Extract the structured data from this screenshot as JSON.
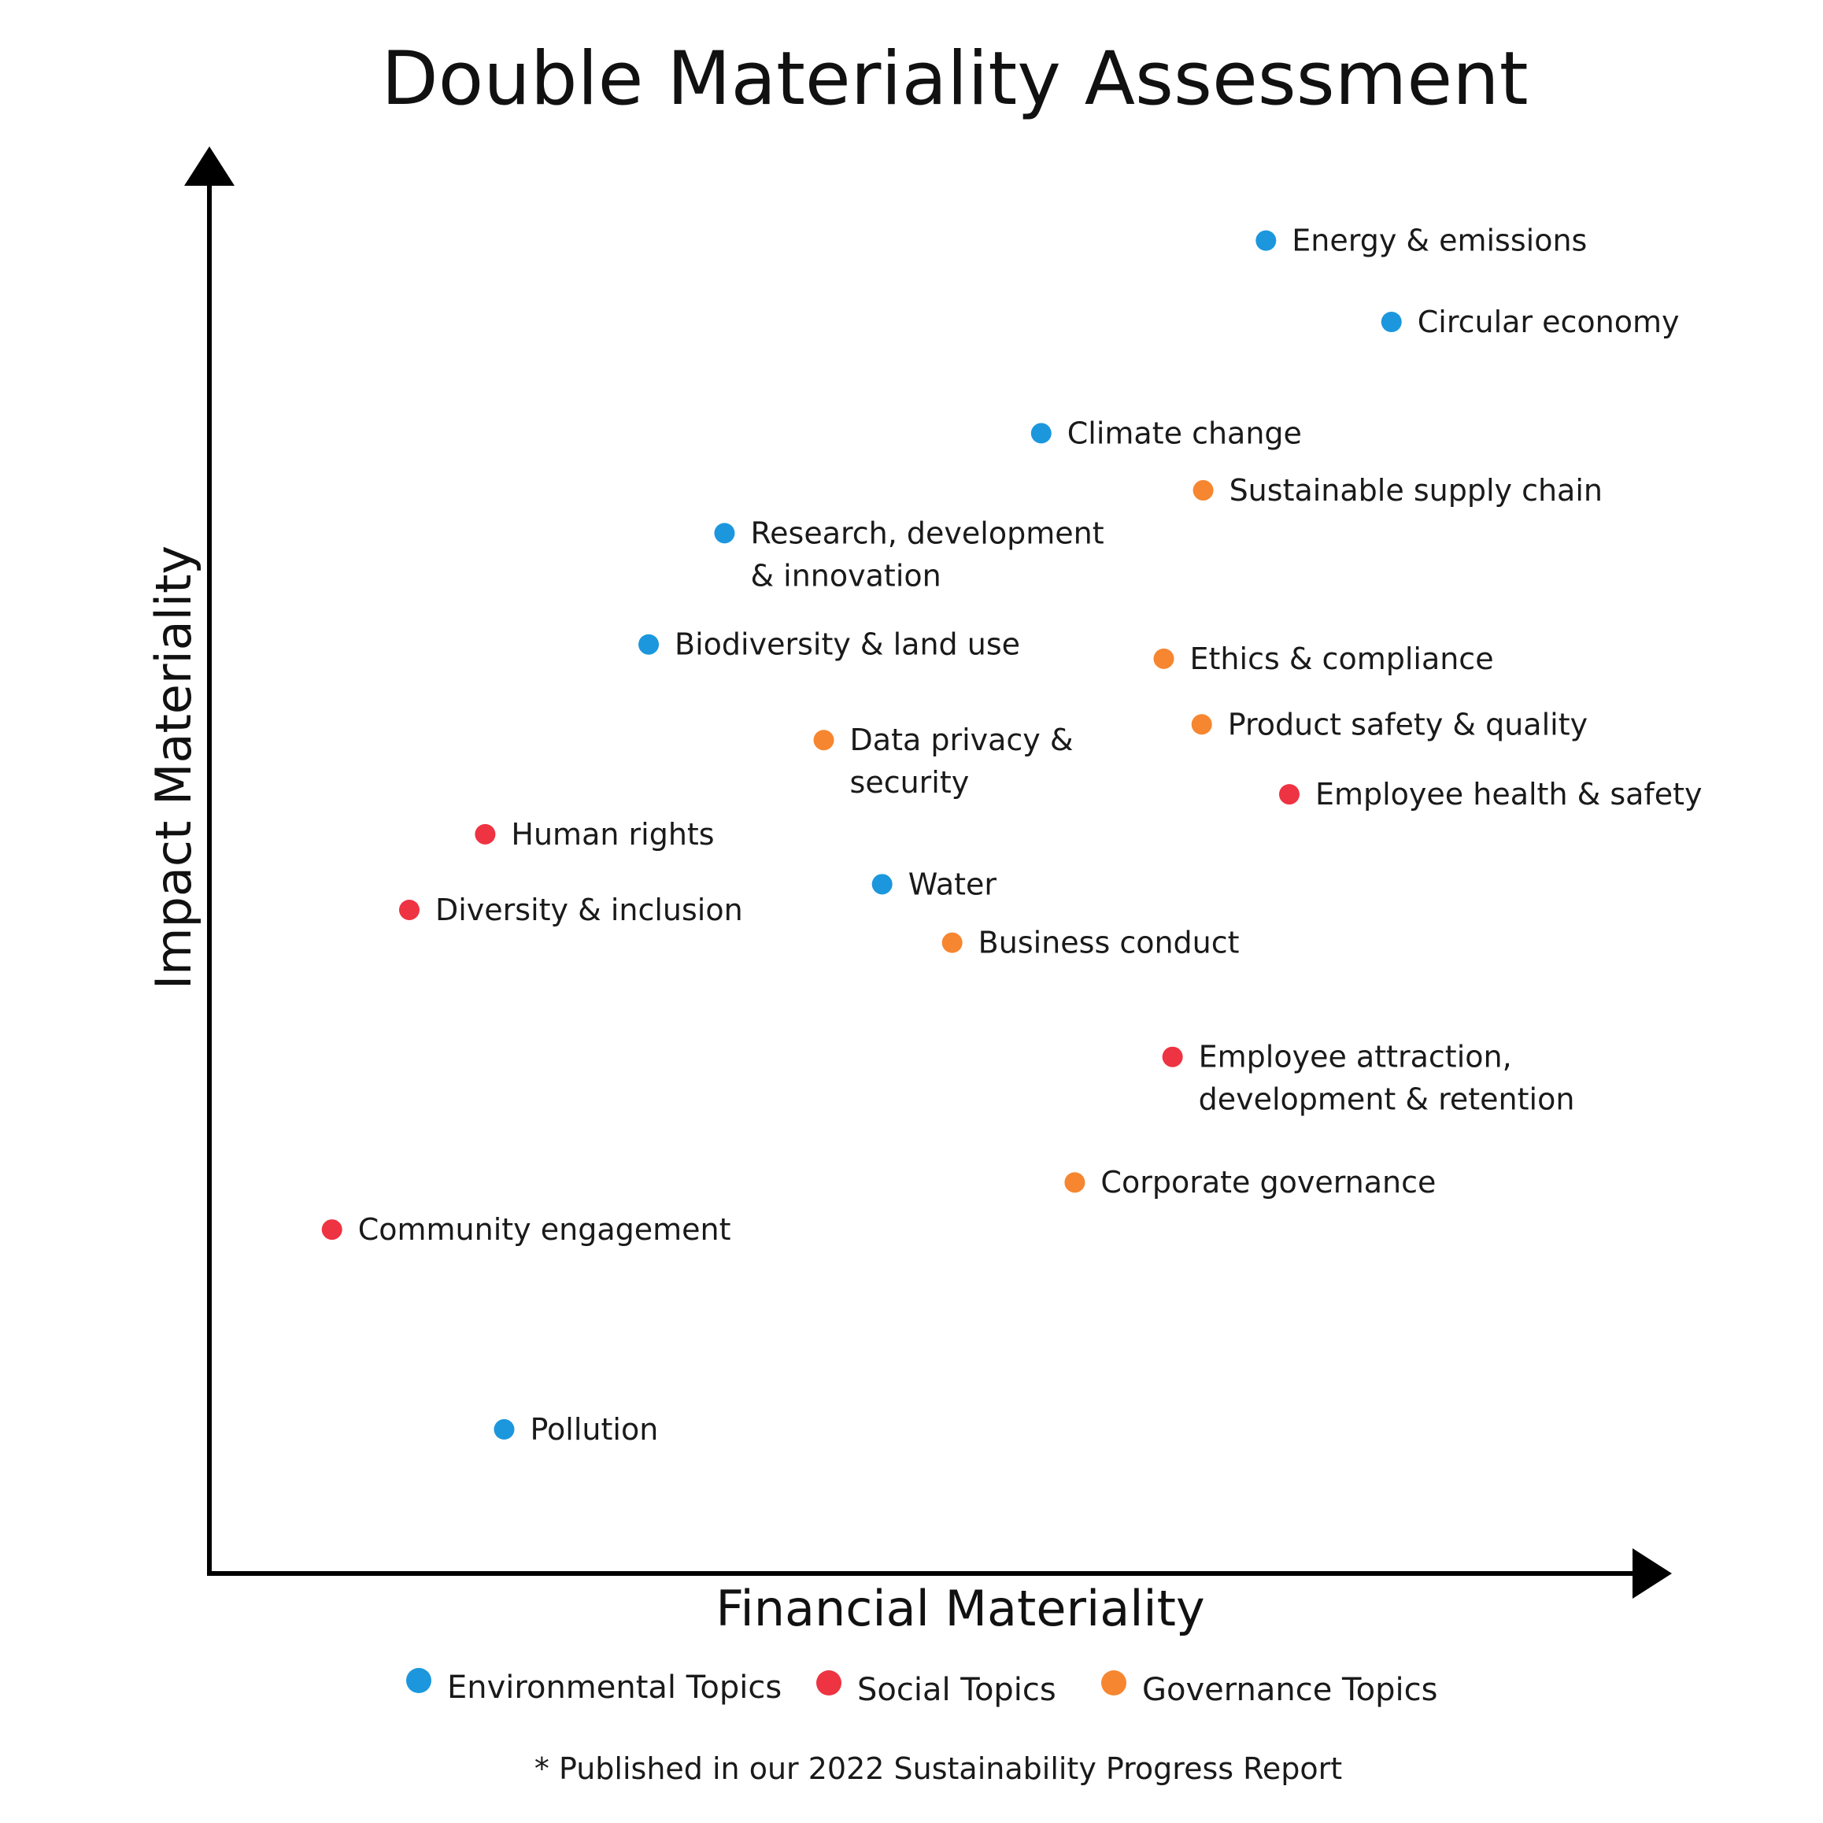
{
  "chart_data": {
    "type": "scatter",
    "title": "Double Materiality Assessment",
    "xlabel": "Financial Materiality",
    "ylabel": "Impact Materiality",
    "xlim": [
      0,
      100
    ],
    "ylim": [
      0,
      100
    ],
    "grid": false,
    "ticks": false,
    "legend_position": "bottom",
    "categories": [
      {
        "key": "env",
        "name": "Environmental Topics",
        "color": "#1C97DD"
      },
      {
        "key": "soc",
        "name": "Social Topics",
        "color": "#EE3342"
      },
      {
        "key": "gov",
        "name": "Governance Topics",
        "color": "#F68630"
      }
    ],
    "points": [
      {
        "label": [
          "Energy & emissions"
        ],
        "category": "env",
        "x": 72.4,
        "y": 93.4
      },
      {
        "label": [
          "Circular economy"
        ],
        "category": "env",
        "x": 81.0,
        "y": 87.7
      },
      {
        "label": [
          "Climate change"
        ],
        "category": "env",
        "x": 57.0,
        "y": 79.9
      },
      {
        "label": [
          "Sustainable supply chain"
        ],
        "category": "gov",
        "x": 68.1,
        "y": 75.9
      },
      {
        "label": [
          "Research, development",
          "& innovation"
        ],
        "category": "env",
        "x": 35.3,
        "y": 72.9
      },
      {
        "label": [
          "Biodiversity & land use"
        ],
        "category": "env",
        "x": 30.1,
        "y": 65.1
      },
      {
        "label": [
          "Ethics & compliance"
        ],
        "category": "gov",
        "x": 65.4,
        "y": 64.1
      },
      {
        "label": [
          "Product safety & quality"
        ],
        "category": "gov",
        "x": 68.0,
        "y": 59.5
      },
      {
        "label": [
          "Data privacy &",
          "security"
        ],
        "category": "gov",
        "x": 42.1,
        "y": 58.4
      },
      {
        "label": [
          "Employee health & safety"
        ],
        "category": "soc",
        "x": 74.0,
        "y": 54.6
      },
      {
        "label": [
          "Human rights"
        ],
        "category": "soc",
        "x": 18.9,
        "y": 51.8
      },
      {
        "label": [
          "Water"
        ],
        "category": "env",
        "x": 46.1,
        "y": 48.3
      },
      {
        "label": [
          "Diversity & inclusion"
        ],
        "category": "soc",
        "x": 13.7,
        "y": 46.5
      },
      {
        "label": [
          "Business conduct"
        ],
        "category": "gov",
        "x": 50.9,
        "y": 44.2
      },
      {
        "label": [
          "Employee attraction,",
          "development & retention"
        ],
        "category": "soc",
        "x": 66.0,
        "y": 36.2
      },
      {
        "label": [
          "Corporate governance"
        ],
        "category": "gov",
        "x": 59.3,
        "y": 27.4
      },
      {
        "label": [
          "Community engagement"
        ],
        "category": "soc",
        "x": 8.4,
        "y": 24.1
      },
      {
        "label": [
          "Pollution"
        ],
        "category": "env",
        "x": 20.2,
        "y": 10.1
      }
    ]
  },
  "footnote": "* Published in our 2022 Sustainability Progress Report"
}
